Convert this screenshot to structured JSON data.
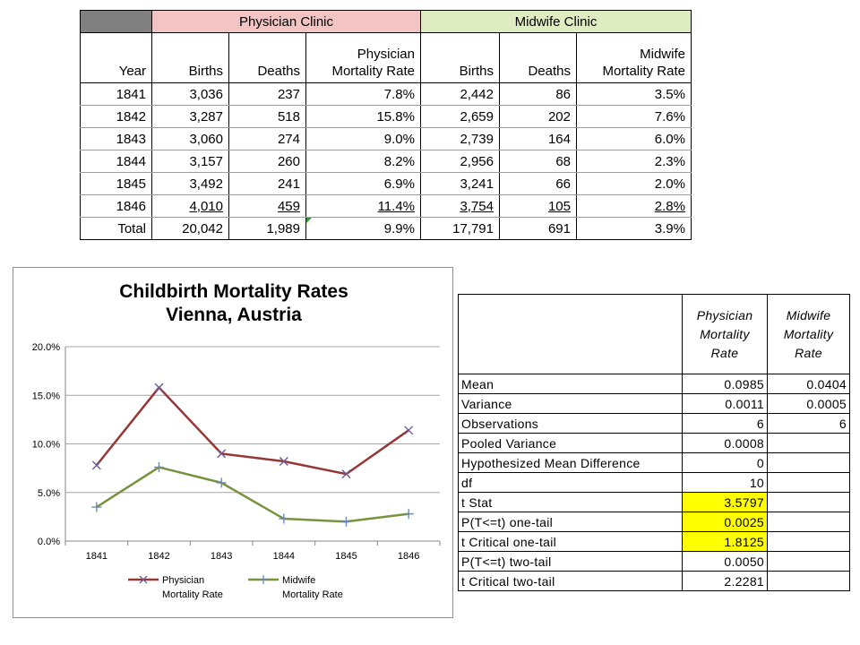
{
  "clinic_table": {
    "groups": {
      "physician": "Physician Clinic",
      "midwife": "Midwife Clinic"
    },
    "group_colors": {
      "physician": "#f2c4c4",
      "midwife": "#dfecc2",
      "corner": "#808080"
    },
    "headers": {
      "year": "Year",
      "p_births": "Births",
      "p_deaths": "Deaths",
      "p_rate_l1": "Physician",
      "p_rate_l2": "Mortality Rate",
      "m_births": "Births",
      "m_deaths": "Deaths",
      "m_rate_l1": "Midwife",
      "m_rate_l2": "Mortality Rate"
    },
    "rows": [
      {
        "year": "1841",
        "p_births": "3,036",
        "p_deaths": "237",
        "p_rate": "7.8%",
        "m_births": "2,442",
        "m_deaths": "86",
        "m_rate": "3.5%"
      },
      {
        "year": "1842",
        "p_births": "3,287",
        "p_deaths": "518",
        "p_rate": "15.8%",
        "m_births": "2,659",
        "m_deaths": "202",
        "m_rate": "7.6%"
      },
      {
        "year": "1843",
        "p_births": "3,060",
        "p_deaths": "274",
        "p_rate": "9.0%",
        "m_births": "2,739",
        "m_deaths": "164",
        "m_rate": "6.0%"
      },
      {
        "year": "1844",
        "p_births": "3,157",
        "p_deaths": "260",
        "p_rate": "8.2%",
        "m_births": "2,956",
        "m_deaths": "68",
        "m_rate": "2.3%"
      },
      {
        "year": "1845",
        "p_births": "3,492",
        "p_deaths": "241",
        "p_rate": "6.9%",
        "m_births": "3,241",
        "m_deaths": "66",
        "m_rate": "2.0%"
      },
      {
        "year": "1846",
        "p_births": "4,010",
        "p_deaths": "459",
        "p_rate": "11.4%",
        "m_births": "3,754",
        "m_deaths": "105",
        "m_rate": "2.8%"
      }
    ],
    "total": {
      "year": "Total",
      "p_births": "20,042",
      "p_deaths": "1,989",
      "p_rate": "9.9%",
      "m_births": "17,791",
      "m_deaths": "691",
      "m_rate": "3.9%"
    }
  },
  "chart_data": {
    "type": "line",
    "title": [
      "Childbirth Mortality Rates",
      "Vienna, Austria"
    ],
    "categories": [
      "1841",
      "1842",
      "1843",
      "1844",
      "1845",
      "1846"
    ],
    "ylim": [
      0,
      0.2
    ],
    "yticks": [
      "0.0%",
      "5.0%",
      "10.0%",
      "15.0%",
      "20.0%"
    ],
    "grid": true,
    "legend_position": "bottom",
    "series": [
      {
        "name_lines": [
          "Physician",
          "Mortality Rate"
        ],
        "color": "#953735",
        "marker": "x",
        "values": [
          0.078,
          0.158,
          0.09,
          0.082,
          0.069,
          0.114
        ]
      },
      {
        "name_lines": [
          "Midwife",
          "Mortality Rate"
        ],
        "color": "#77933c",
        "marker": "+",
        "values": [
          0.035,
          0.076,
          0.06,
          0.023,
          0.02,
          0.028
        ]
      }
    ]
  },
  "ttest_table": {
    "header": {
      "physician": [
        "Physician",
        "Mortality",
        "Rate"
      ],
      "midwife": [
        "Midwife",
        "Mortality",
        "Rate"
      ]
    },
    "highlight_color": "#ffff00",
    "rows": [
      {
        "label": "Mean",
        "physician": "0.0985",
        "midwife": "0.0404"
      },
      {
        "label": "Variance",
        "physician": "0.0011",
        "midwife": "0.0005"
      },
      {
        "label": "Observations",
        "physician": "6",
        "midwife": "6"
      },
      {
        "label": "Pooled Variance",
        "physician": "0.0008",
        "midwife": ""
      },
      {
        "label": "Hypothesized Mean Difference",
        "physician": "0",
        "midwife": ""
      },
      {
        "label": "df",
        "physician": "10",
        "midwife": ""
      },
      {
        "label": "t Stat",
        "physician": "3.5797",
        "midwife": ""
      },
      {
        "label": "P(T<=t) one-tail",
        "physician": "0.0025",
        "midwife": ""
      },
      {
        "label": "t Critical one-tail",
        "physician": "1.8125",
        "midwife": ""
      },
      {
        "label": "P(T<=t) two-tail",
        "physician": "0.0050",
        "midwife": ""
      },
      {
        "label": "t Critical two-tail",
        "physician": "2.2281",
        "midwife": ""
      }
    ]
  }
}
